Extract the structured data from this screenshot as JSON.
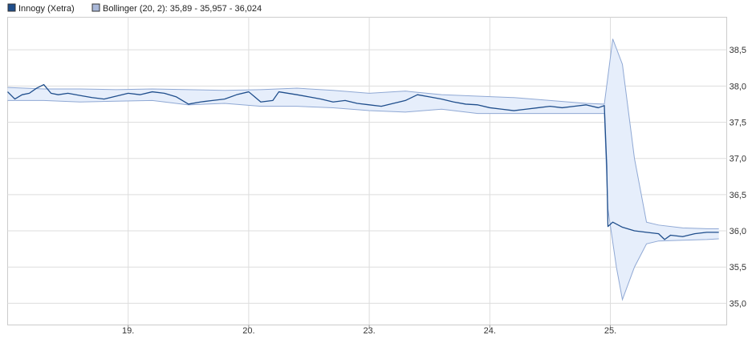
{
  "chart_data": {
    "type": "line",
    "title": "",
    "xlabel": "",
    "ylabel": "",
    "legend": {
      "placement": "top-left",
      "entries": [
        {
          "label": "Innogy (Xetra)",
          "color": "#1f4e8c"
        },
        {
          "label": "Bollinger (20, 2): 35,89 - 35,957 - 36,024",
          "color": "#a9b8d9"
        }
      ]
    },
    "x_ticks": [
      "19.",
      "20.",
      "23.",
      "24.",
      "25."
    ],
    "y_ticks": [
      "35,0",
      "35,5",
      "36,0",
      "36,5",
      "37,0",
      "37,5",
      "38,0",
      "38,5"
    ],
    "ylim": [
      34.7,
      38.95
    ],
    "grid": true,
    "colors": {
      "price": "#1f4e8c",
      "band_fill": "#e6eefb",
      "band_line": "#8fa8d4",
      "grid": "#dddddd"
    },
    "series": [
      {
        "name": "Innogy (Xetra)",
        "points": [
          [
            0.0,
            37.92
          ],
          [
            0.06,
            37.82
          ],
          [
            0.12,
            37.88
          ],
          [
            0.18,
            37.9
          ],
          [
            0.24,
            37.97
          ],
          [
            0.3,
            38.02
          ],
          [
            0.36,
            37.9
          ],
          [
            0.42,
            37.88
          ],
          [
            0.5,
            37.9
          ],
          [
            0.6,
            37.87
          ],
          [
            0.7,
            37.84
          ],
          [
            0.8,
            37.82
          ],
          [
            0.9,
            37.86
          ],
          [
            1.0,
            37.9
          ],
          [
            1.1,
            37.88
          ],
          [
            1.2,
            37.92
          ],
          [
            1.3,
            37.9
          ],
          [
            1.4,
            37.85
          ],
          [
            1.5,
            37.75
          ],
          [
            1.6,
            37.78
          ],
          [
            1.7,
            37.8
          ],
          [
            1.8,
            37.82
          ],
          [
            1.9,
            37.88
          ],
          [
            2.0,
            37.92
          ],
          [
            2.05,
            37.85
          ],
          [
            2.1,
            37.78
          ],
          [
            2.2,
            37.8
          ],
          [
            2.25,
            37.92
          ],
          [
            2.4,
            37.88
          ],
          [
            2.5,
            37.85
          ],
          [
            2.6,
            37.82
          ],
          [
            2.7,
            37.78
          ],
          [
            2.8,
            37.8
          ],
          [
            2.9,
            37.76
          ],
          [
            3.0,
            37.74
          ],
          [
            3.1,
            37.72
          ],
          [
            3.2,
            37.76
          ],
          [
            3.3,
            37.8
          ],
          [
            3.4,
            37.88
          ],
          [
            3.5,
            37.85
          ],
          [
            3.6,
            37.82
          ],
          [
            3.7,
            37.78
          ],
          [
            3.8,
            37.75
          ],
          [
            3.9,
            37.74
          ],
          [
            4.0,
            37.7
          ],
          [
            4.1,
            37.68
          ],
          [
            4.2,
            37.66
          ],
          [
            4.3,
            37.68
          ],
          [
            4.4,
            37.7
          ],
          [
            4.5,
            37.72
          ],
          [
            4.6,
            37.7
          ],
          [
            4.7,
            37.72
          ],
          [
            4.8,
            37.74
          ],
          [
            4.9,
            37.7
          ],
          [
            4.95,
            37.73
          ],
          [
            4.97,
            36.9
          ],
          [
            4.98,
            36.06
          ],
          [
            5.02,
            36.12
          ],
          [
            5.1,
            36.05
          ],
          [
            5.2,
            36.0
          ],
          [
            5.3,
            35.98
          ],
          [
            5.4,
            35.96
          ],
          [
            5.45,
            35.88
          ],
          [
            5.5,
            35.94
          ],
          [
            5.6,
            35.92
          ],
          [
            5.7,
            35.96
          ],
          [
            5.8,
            35.98
          ],
          [
            5.9,
            35.98
          ]
        ]
      },
      {
        "name": "Bollinger (20, 2): 35,89 - 35,957 - 36,024",
        "upper": [
          [
            0.0,
            37.98
          ],
          [
            0.3,
            37.96
          ],
          [
            0.6,
            37.96
          ],
          [
            0.9,
            37.95
          ],
          [
            1.2,
            37.96
          ],
          [
            1.5,
            37.95
          ],
          [
            1.8,
            37.94
          ],
          [
            2.1,
            37.95
          ],
          [
            2.4,
            37.97
          ],
          [
            2.7,
            37.94
          ],
          [
            3.0,
            37.9
          ],
          [
            3.3,
            37.93
          ],
          [
            3.6,
            37.88
          ],
          [
            3.9,
            37.86
          ],
          [
            4.2,
            37.84
          ],
          [
            4.5,
            37.8
          ],
          [
            4.8,
            37.76
          ],
          [
            4.95,
            37.75
          ],
          [
            5.02,
            38.65
          ],
          [
            5.1,
            38.3
          ],
          [
            5.2,
            37.0
          ],
          [
            5.3,
            36.12
          ],
          [
            5.4,
            36.08
          ],
          [
            5.6,
            36.04
          ],
          [
            5.8,
            36.03
          ],
          [
            5.9,
            36.03
          ]
        ],
        "lower": [
          [
            0.0,
            37.8
          ],
          [
            0.3,
            37.8
          ],
          [
            0.6,
            37.78
          ],
          [
            0.9,
            37.79
          ],
          [
            1.2,
            37.8
          ],
          [
            1.5,
            37.74
          ],
          [
            1.8,
            37.76
          ],
          [
            2.1,
            37.72
          ],
          [
            2.4,
            37.72
          ],
          [
            2.7,
            37.7
          ],
          [
            3.0,
            37.66
          ],
          [
            3.3,
            37.64
          ],
          [
            3.6,
            37.68
          ],
          [
            3.9,
            37.62
          ],
          [
            4.2,
            37.62
          ],
          [
            4.5,
            37.62
          ],
          [
            4.8,
            37.62
          ],
          [
            4.95,
            37.62
          ],
          [
            4.98,
            36.3
          ],
          [
            5.05,
            35.5
          ],
          [
            5.1,
            35.05
          ],
          [
            5.2,
            35.5
          ],
          [
            5.3,
            35.82
          ],
          [
            5.4,
            35.86
          ],
          [
            5.6,
            35.87
          ],
          [
            5.8,
            35.88
          ],
          [
            5.9,
            35.89
          ]
        ]
      }
    ]
  }
}
